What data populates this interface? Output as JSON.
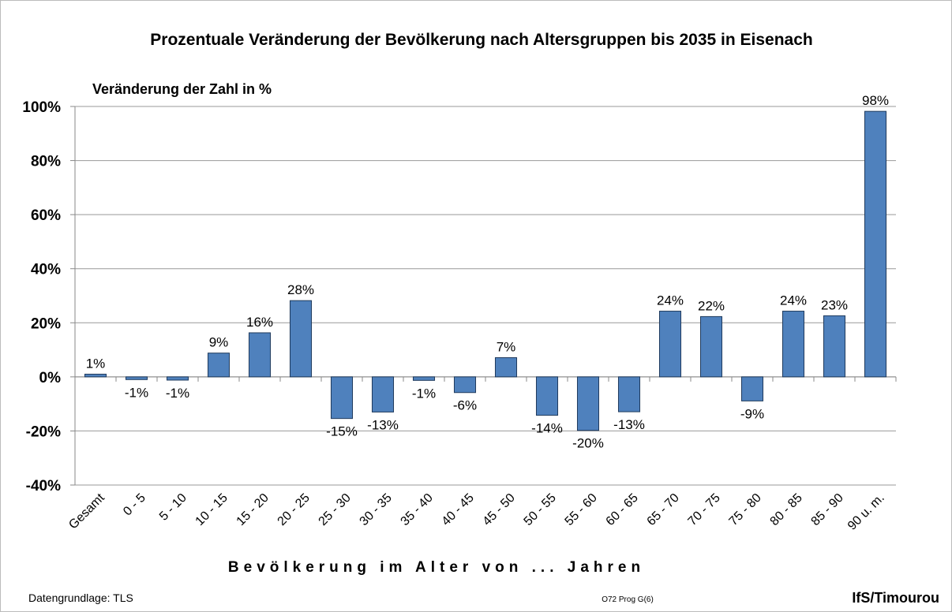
{
  "chart_data": {
    "type": "bar",
    "title": "Prozentuale Veränderung der Bevölkerung nach Altersgruppen bis 2035 in Eisenach",
    "y_label": "Veränderung der Zahl in %",
    "x_label": "Bevölkerung im Alter von ... Jahren",
    "source": "Datengrundlage: TLS",
    "code": "O72 Prog G(6)",
    "author": "IfS/Timourou",
    "categories": [
      "Gesamt",
      "0 - 5",
      "5 - 10",
      "10 - 15",
      "15 - 20",
      "20 - 25",
      "25 - 30",
      "30 - 35",
      "35 - 40",
      "40 - 45",
      "45 - 50",
      "50 - 55",
      "55 - 60",
      "60 - 65",
      "65 - 70",
      "70 - 75",
      "75 - 80",
      "80 - 85",
      "85 - 90",
      "90 u. m."
    ],
    "values": [
      1,
      -1,
      -1.2,
      8.8,
      16.3,
      28.2,
      -15.4,
      -13,
      -1.3,
      -5.8,
      7.1,
      -14.2,
      -19.8,
      -12.9,
      24.3,
      22.3,
      -8.9,
      24.3,
      22.6,
      98.2
    ],
    "value_labels": [
      "1%",
      "-1%",
      "-1%",
      "9%",
      "16%",
      "28%",
      "-15%",
      "-13%",
      "-1%",
      "-6%",
      "7%",
      "-14%",
      "-20%",
      "-13%",
      "24%",
      "22%",
      "-9%",
      "24%",
      "23%",
      "98%"
    ],
    "color": "#4f81bd",
    "ylim": [
      -40,
      100
    ],
    "yticks": [
      {
        "value": -40,
        "label": "-40%"
      },
      {
        "value": -20,
        "label": "-20%"
      },
      {
        "value": 0,
        "label": "0%"
      },
      {
        "value": 20,
        "label": "20%"
      },
      {
        "value": 40,
        "label": "40%"
      },
      {
        "value": 60,
        "label": "60%"
      },
      {
        "value": 80,
        "label": "80%"
      },
      {
        "value": 100,
        "label": "100%"
      }
    ],
    "grid": true
  }
}
